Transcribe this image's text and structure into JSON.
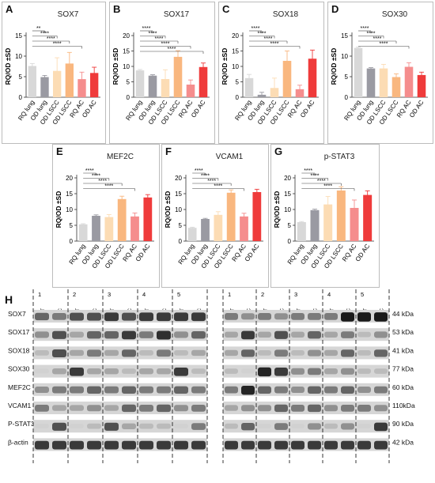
{
  "colors": {
    "RQ lung": "#d8d8d8",
    "OD lung": "#9a9aa2",
    "OD LSCC": "#fcdcb4",
    "OD LSCC2": "#f9b77f",
    "RQ AC": "#f58d8d",
    "OD AC": "#ef3b3b"
  },
  "y_axis_label": "RQ/OD ±SD",
  "significance_label": "****",
  "chart_data": [
    {
      "panel": "A",
      "type": "bar",
      "title": "SOX7",
      "ylabel": "RQ/OD ±SD",
      "ylim": [
        0,
        15
      ],
      "yticks": [
        0,
        5,
        10,
        15
      ],
      "categories": [
        "RQ lung",
        "OD lung",
        "OD LSCC",
        "OD LSCC",
        "RQ AC",
        "OD AC"
      ],
      "values": [
        7.6,
        4.9,
        6.4,
        8.2,
        4.4,
        5.9
      ],
      "errors": [
        0.6,
        0.4,
        3.2,
        2.7,
        1.7,
        1.4
      ],
      "significance": [
        {
          "from": 0,
          "to": 1,
          "label": "**"
        },
        {
          "from": 0,
          "to": 2,
          "label": "****"
        },
        {
          "from": 0,
          "to": 3,
          "label": "****"
        },
        {
          "from": 0,
          "to": 4,
          "label": "****"
        }
      ]
    },
    {
      "panel": "B",
      "type": "bar",
      "title": "SOX17",
      "ylabel": "RQ/OD ±SD",
      "ylim": [
        0,
        20
      ],
      "yticks": [
        0,
        5,
        10,
        15,
        20
      ],
      "categories": [
        "RQ lung",
        "OD lung",
        "OD LSCC",
        "OD LSCC",
        "RQ AC",
        "OD AC"
      ],
      "values": [
        8.7,
        7.0,
        5.9,
        13.1,
        4.1,
        9.8
      ],
      "errors": [
        0.3,
        0.3,
        3.0,
        2.0,
        1.5,
        1.3
      ],
      "significance": [
        {
          "from": 0,
          "to": 1,
          "label": "****"
        },
        {
          "from": 0,
          "to": 2,
          "label": "****"
        },
        {
          "from": 0,
          "to": 3,
          "label": "****"
        },
        {
          "from": 0,
          "to": 4,
          "label": "****"
        },
        {
          "from": 0,
          "to": 5,
          "label": "****"
        }
      ]
    },
    {
      "panel": "C",
      "type": "bar",
      "title": "SOX18",
      "ylabel": "RQ/OD ±SD",
      "ylim": [
        0,
        20
      ],
      "yticks": [
        0,
        5,
        10,
        15,
        20
      ],
      "categories": [
        "RQ lung",
        "OD lung",
        "OD LSCC",
        "OD LSCC",
        "RQ AC",
        "OD AC"
      ],
      "values": [
        6.2,
        0.8,
        3.0,
        11.8,
        2.6,
        12.5
      ],
      "errors": [
        1.2,
        0.8,
        3.2,
        3.2,
        1.3,
        2.8
      ],
      "significance": [
        {
          "from": 0,
          "to": 1,
          "label": "****"
        },
        {
          "from": 0,
          "to": 2,
          "label": "****"
        },
        {
          "from": 0,
          "to": 3,
          "label": "****"
        },
        {
          "from": 0,
          "to": 4,
          "label": "****"
        }
      ]
    },
    {
      "panel": "D",
      "type": "bar",
      "title": "SOX30",
      "ylabel": "RQ/OD ±SD",
      "ylim": [
        0,
        15
      ],
      "yticks": [
        0,
        5,
        10,
        15
      ],
      "categories": [
        "RQ lung",
        "OD lung",
        "OD LSCC",
        "OD LSCC",
        "RQ AC",
        "OD AC"
      ],
      "values": [
        12.0,
        7.0,
        7.0,
        4.9,
        7.4,
        5.4
      ],
      "errors": [
        0.2,
        0.2,
        1.0,
        0.8,
        1.0,
        0.7
      ],
      "significance": [
        {
          "from": 0,
          "to": 1,
          "label": "****"
        },
        {
          "from": 0,
          "to": 2,
          "label": "****"
        },
        {
          "from": 0,
          "to": 3,
          "label": "****"
        },
        {
          "from": 0,
          "to": 4,
          "label": "****"
        }
      ]
    },
    {
      "panel": "E",
      "type": "bar",
      "title": "MEF2C",
      "ylabel": "RQ/OD ±SD",
      "ylim": [
        0,
        20
      ],
      "yticks": [
        0,
        5,
        10,
        15,
        20
      ],
      "categories": [
        "RQ lung",
        "OD lung",
        "OD LSCC",
        "OD LSCC",
        "RQ AC",
        "OD AC"
      ],
      "values": [
        5.3,
        8.0,
        7.6,
        13.3,
        7.8,
        13.8
      ],
      "errors": [
        0.2,
        0.3,
        0.8,
        0.9,
        1.1,
        0.9
      ],
      "significance": [
        {
          "from": 0,
          "to": 1,
          "label": "****"
        },
        {
          "from": 0,
          "to": 2,
          "label": "****"
        },
        {
          "from": 0,
          "to": 3,
          "label": "****"
        },
        {
          "from": 0,
          "to": 4,
          "label": "****"
        }
      ]
    },
    {
      "panel": "F",
      "type": "bar",
      "title": "VCAM1",
      "ylabel": "RQ/OD ±SD",
      "ylim": [
        0,
        20
      ],
      "yticks": [
        0,
        5,
        10,
        15,
        20
      ],
      "categories": [
        "RQ lung",
        "OD lung",
        "OD LSCC",
        "OD LSCC",
        "RQ AC",
        "OD AC"
      ],
      "values": [
        4.2,
        7.0,
        8.3,
        15.3,
        7.8,
        15.5
      ],
      "errors": [
        0.2,
        0.2,
        1.0,
        0.9,
        1.0,
        0.9
      ],
      "significance": [
        {
          "from": 0,
          "to": 1,
          "label": "****"
        },
        {
          "from": 0,
          "to": 2,
          "label": "****"
        },
        {
          "from": 0,
          "to": 3,
          "label": "****"
        },
        {
          "from": 0,
          "to": 4,
          "label": "****"
        }
      ]
    },
    {
      "panel": "G",
      "type": "bar",
      "title": "p-STAT3",
      "ylabel": "RQ/OD ±SD",
      "ylim": [
        0,
        20
      ],
      "yticks": [
        0,
        5,
        10,
        15,
        20
      ],
      "categories": [
        "RQ lung",
        "OD lung",
        "OD LSCC",
        "OD LSCC",
        "RQ AC",
        "OD AC"
      ],
      "values": [
        6.0,
        9.8,
        11.6,
        16.0,
        10.5,
        14.6
      ],
      "errors": [
        0.2,
        0.3,
        2.5,
        1.2,
        2.5,
        1.3
      ],
      "significance": [
        {
          "from": 0,
          "to": 1,
          "label": "****"
        },
        {
          "from": 0,
          "to": 2,
          "label": "****"
        },
        {
          "from": 0,
          "to": 3,
          "label": "****"
        },
        {
          "from": 0,
          "to": 4,
          "label": "****"
        }
      ]
    }
  ],
  "blot": {
    "panel": "H",
    "rows": [
      "SOX7",
      "SOX17",
      "SOX18",
      "SOX30",
      "MEF2C",
      "VCAM1",
      "P-STAT3",
      "β-actin"
    ],
    "kda": [
      "44 kDa",
      "53 kDa",
      "41 kDa",
      "77 kDa",
      "60 kDa",
      "110kDa",
      "90 kDa",
      "42 kDa"
    ],
    "left_group": {
      "pair_numbers": [
        "1",
        "2",
        "3",
        "4",
        "5"
      ],
      "lane_labels": [
        "NMLT",
        "LSCC",
        "NMLT",
        "LSCC",
        "NMLT",
        "LSCC",
        "NMLT",
        "LSCC",
        "NMLT",
        "LSCC"
      ]
    },
    "right_group": {
      "pair_numbers": [
        "1",
        "2",
        "3",
        "4",
        "5"
      ],
      "lane_labels": [
        "NMLT",
        "LAC",
        "NMLT",
        "LAC",
        "NMLT",
        "LAC",
        "NMLT",
        "LAC",
        "NMLT",
        "LAC"
      ]
    },
    "intensities": [
      [
        0.6,
        0.5,
        0.7,
        0.7,
        0.8,
        0.7,
        0.8,
        0.8,
        0.8,
        0.8,
        0.5,
        0.4,
        0.5,
        0.4,
        0.5,
        0.5,
        0.5,
        0.95,
        0.95,
        0.95
      ],
      [
        0.4,
        0.7,
        0.3,
        0.6,
        0.6,
        0.8,
        0.5,
        0.85,
        0.4,
        0.6,
        0.3,
        0.8,
        0.3,
        0.7,
        0.3,
        0.6,
        0.3,
        0.5,
        0.2,
        0.4
      ],
      [
        0.2,
        0.7,
        0.3,
        0.5,
        0.3,
        0.6,
        0.2,
        0.5,
        0.2,
        0.3,
        0.3,
        0.6,
        0.2,
        0.5,
        0.2,
        0.4,
        0.3,
        0.6,
        0.2,
        0.6
      ],
      [
        0.1,
        0.3,
        0.8,
        0.3,
        0.3,
        0.2,
        0.3,
        0.3,
        0.8,
        0.2,
        0.2,
        0.1,
        0.9,
        0.8,
        0.4,
        0.5,
        0.3,
        0.4,
        0.2,
        0.2
      ],
      [
        0.4,
        0.5,
        0.5,
        0.6,
        0.5,
        0.6,
        0.5,
        0.5,
        0.6,
        0.5,
        0.5,
        0.9,
        0.6,
        0.5,
        0.4,
        0.6,
        0.5,
        0.6,
        0.4,
        0.5
      ],
      [
        0.5,
        0.3,
        0.3,
        0.4,
        0.3,
        0.6,
        0.5,
        0.6,
        0.4,
        0.5,
        0.3,
        0.4,
        0.4,
        0.6,
        0.5,
        0.6,
        0.4,
        0.5,
        0.5,
        0.4
      ],
      [
        0.1,
        0.7,
        0.1,
        0.2,
        0.7,
        0.3,
        0.2,
        0.2,
        0.1,
        0.5,
        0.2,
        0.6,
        0.1,
        0.5,
        0.1,
        0.4,
        0.2,
        0.4,
        0.1,
        0.8
      ],
      [
        0.8,
        0.8,
        0.8,
        0.8,
        0.8,
        0.8,
        0.8,
        0.8,
        0.8,
        0.8,
        0.8,
        0.8,
        0.8,
        0.8,
        0.8,
        0.8,
        0.8,
        0.8,
        0.8,
        0.8
      ]
    ]
  }
}
